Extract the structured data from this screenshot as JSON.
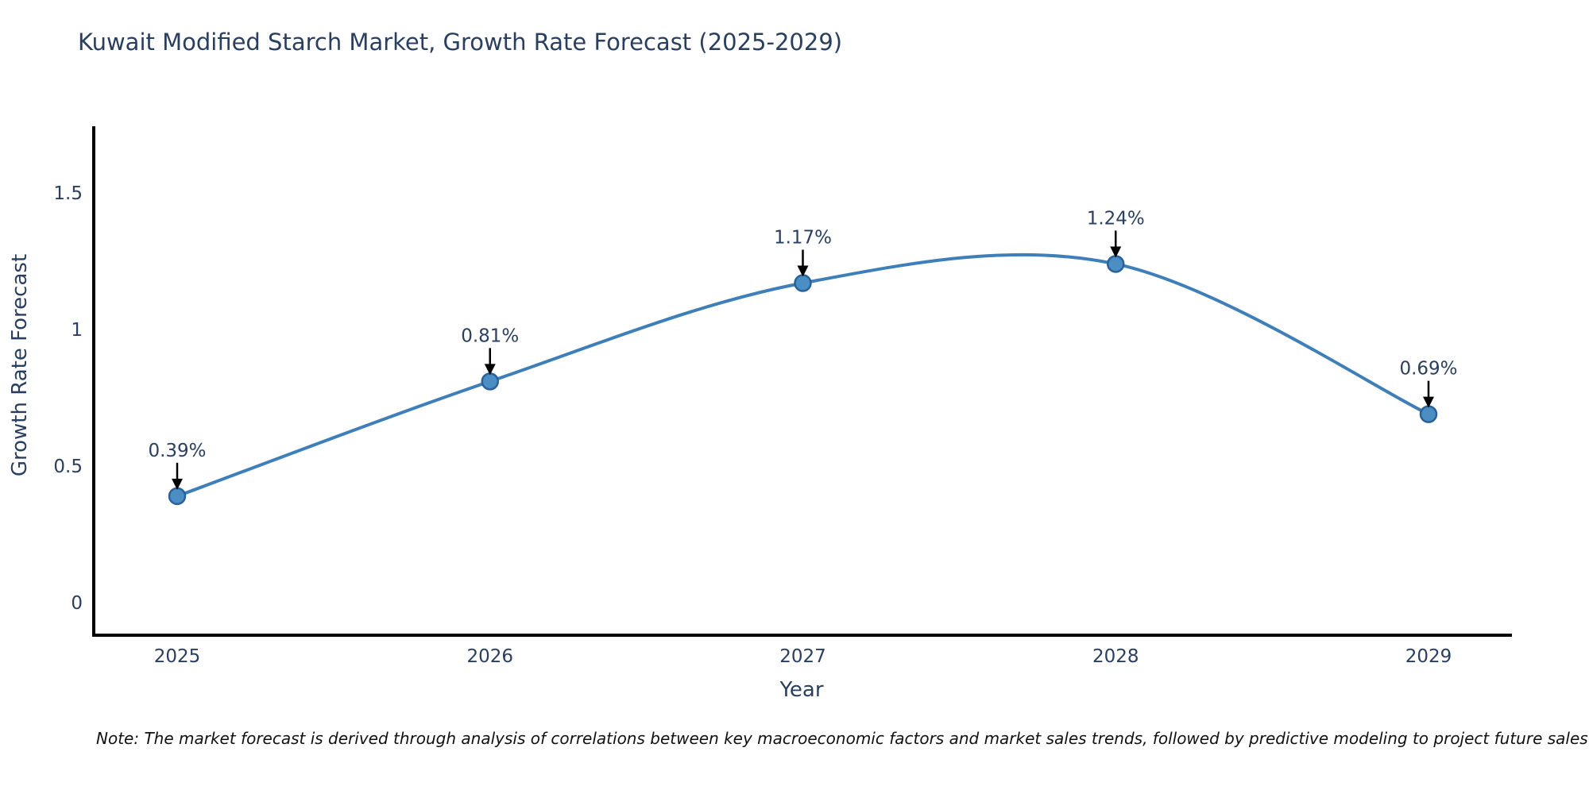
{
  "title": "Kuwait Modified Starch Market, Growth Rate Forecast (2025-2029)",
  "note": "Note: The market forecast is derived through analysis of correlations between key macroeconomic factors and market sales trends, followed by predictive modeling to project future sales",
  "chart_data": {
    "type": "line",
    "line_shape": "spline",
    "title": "Kuwait Modified Starch Market, Growth Rate Forecast (2025-2029)",
    "xlabel": "Year",
    "ylabel": "Growth Rate Forecast",
    "categories": [
      "2025",
      "2026",
      "2027",
      "2028",
      "2029"
    ],
    "values": [
      0.39,
      0.81,
      1.17,
      1.24,
      0.69
    ],
    "point_labels": [
      "0.39%",
      "0.81%",
      "1.17%",
      "1.24%",
      "0.69%"
    ],
    "yticks": [
      0,
      0.5,
      1,
      1.5
    ],
    "ytick_labels": [
      "0",
      "0.5",
      "1",
      "1.5"
    ],
    "ylim": [
      -0.12,
      1.75
    ],
    "grid": false,
    "legend": "none",
    "marker": "circle",
    "annotation_style": "label-with-down-arrow",
    "colors": {
      "line": "#3f7fb9",
      "marker_fill": "#4a8ec4",
      "marker_edge": "#2a6199",
      "axis_line": "#000000",
      "text": "#2a3f5f",
      "annotation_text": "#2a3f5f",
      "annotation_arrow": "#000000",
      "note_text": "#111111",
      "background": "#ffffff"
    }
  }
}
